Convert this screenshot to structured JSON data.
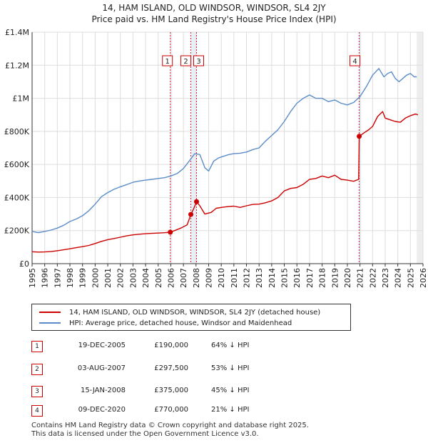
{
  "title": "14, HAM ISLAND, OLD WINDSOR, WINDSOR, SL4 2JY",
  "subtitle": "Price paid vs. HM Land Registry's House Price Index (HPI)",
  "colors": {
    "property": "#cc0000",
    "hpi": "#5b8cc8",
    "shade": "#dfe7f5",
    "grid": "#dddddd"
  },
  "chart_data": {
    "type": "line",
    "title": "Price paid vs. HM Land Registry's House Price Index (HPI)",
    "xlim": [
      1995,
      2026
    ],
    "ylim": [
      0,
      1400000
    ],
    "x_ticks": [
      "1995",
      "1996",
      "1997",
      "1998",
      "1999",
      "2000",
      "2001",
      "2002",
      "2003",
      "2004",
      "2005",
      "2006",
      "2007",
      "2008",
      "2009",
      "2010",
      "2011",
      "2012",
      "2013",
      "2014",
      "2015",
      "2016",
      "2017",
      "2018",
      "2019",
      "2020",
      "2021",
      "2022",
      "2023",
      "2024",
      "2025",
      "2026"
    ],
    "y_ticks": [
      {
        "value": 0,
        "label": "£0"
      },
      {
        "value": 200000,
        "label": "£200K"
      },
      {
        "value": 400000,
        "label": "£400K"
      },
      {
        "value": 600000,
        "label": "£600K"
      },
      {
        "value": 800000,
        "label": "£800K"
      },
      {
        "value": 1000000,
        "label": "£1M"
      },
      {
        "value": 1200000,
        "label": "£1.2M"
      },
      {
        "value": 1400000,
        "label": "£1.4M"
      }
    ],
    "series": [
      {
        "name": "14, HAM ISLAND, OLD WINDSOR, WINDSOR, SL4 2JY (detached house)",
        "color": "#cc0000",
        "x": [
          1995.0,
          1995.5,
          1996.0,
          1996.5,
          1997.0,
          1997.5,
          1998.0,
          1998.5,
          1999.0,
          1999.5,
          2000.0,
          2000.5,
          2001.0,
          2001.5,
          2002.0,
          2002.5,
          2003.0,
          2003.5,
          2004.0,
          2004.5,
          2005.0,
          2005.5,
          2005.96,
          2006.3,
          2006.8,
          2007.3,
          2007.59,
          2007.8,
          2008.04,
          2008.3,
          2008.7,
          2009.2,
          2009.6,
          2010.0,
          2010.5,
          2011.0,
          2011.5,
          2012.0,
          2012.5,
          2013.0,
          2013.5,
          2014.0,
          2014.5,
          2015.0,
          2015.5,
          2016.0,
          2016.5,
          2017.0,
          2017.5,
          2018.0,
          2018.5,
          2019.0,
          2019.5,
          2020.0,
          2020.5,
          2020.9,
          2020.94,
          2021.3,
          2021.7,
          2022.0,
          2022.4,
          2022.8,
          2023.0,
          2023.4,
          2023.8,
          2024.2,
          2024.6,
          2025.0,
          2025.4,
          2025.6
        ],
        "values": [
          72000,
          70000,
          71000,
          73000,
          78000,
          84000,
          90000,
          97000,
          103000,
          110000,
          122000,
          135000,
          145000,
          152000,
          160000,
          168000,
          174000,
          178000,
          181000,
          183000,
          185000,
          187000,
          190000,
          200000,
          215000,
          235000,
          297500,
          330000,
          375000,
          350000,
          300000,
          310000,
          335000,
          340000,
          345000,
          348000,
          340000,
          350000,
          358000,
          360000,
          368000,
          380000,
          400000,
          440000,
          455000,
          460000,
          480000,
          510000,
          515000,
          530000,
          520000,
          535000,
          510000,
          505000,
          498000,
          510000,
          770000,
          790000,
          810000,
          830000,
          890000,
          920000,
          880000,
          870000,
          860000,
          855000,
          880000,
          895000,
          905000,
          900000
        ]
      },
      {
        "name": "HPI: Average price, detached house, Windsor and Maidenhead",
        "color": "#5b8cc8",
        "x": [
          1995.0,
          1995.5,
          1996.0,
          1996.5,
          1997.0,
          1997.5,
          1998.0,
          1998.5,
          1999.0,
          1999.5,
          2000.0,
          2000.5,
          2001.0,
          2001.5,
          2002.0,
          2002.5,
          2003.0,
          2003.5,
          2004.0,
          2004.5,
          2005.0,
          2005.5,
          2006.0,
          2006.5,
          2007.0,
          2007.5,
          2007.9,
          2008.3,
          2008.7,
          2009.0,
          2009.4,
          2009.8,
          2010.2,
          2010.6,
          2011.0,
          2011.5,
          2012.0,
          2012.5,
          2013.0,
          2013.5,
          2014.0,
          2014.5,
          2015.0,
          2015.5,
          2016.0,
          2016.5,
          2017.0,
          2017.5,
          2018.0,
          2018.5,
          2019.0,
          2019.5,
          2020.0,
          2020.5,
          2021.0,
          2021.5,
          2022.0,
          2022.5,
          2022.9,
          2023.2,
          2023.5,
          2023.8,
          2024.1,
          2024.4,
          2024.7,
          2025.0,
          2025.3,
          2025.5
        ],
        "values": [
          195000,
          188000,
          195000,
          203000,
          215000,
          232000,
          255000,
          270000,
          290000,
          320000,
          360000,
          405000,
          430000,
          450000,
          465000,
          478000,
          492000,
          500000,
          505000,
          510000,
          515000,
          520000,
          530000,
          545000,
          575000,
          625000,
          665000,
          660000,
          580000,
          560000,
          620000,
          640000,
          650000,
          660000,
          665000,
          668000,
          675000,
          690000,
          700000,
          740000,
          775000,
          810000,
          860000,
          920000,
          970000,
          1000000,
          1020000,
          1000000,
          1000000,
          980000,
          990000,
          970000,
          960000,
          975000,
          1010000,
          1070000,
          1140000,
          1180000,
          1130000,
          1150000,
          1160000,
          1120000,
          1100000,
          1120000,
          1140000,
          1150000,
          1130000,
          1130000
        ]
      }
    ],
    "transactions": [
      {
        "num": "1",
        "date": "19-DEC-2005",
        "x": 2005.96,
        "price": 190000,
        "price_label": "£190,000",
        "hpi": "64% ↓ HPI"
      },
      {
        "num": "2",
        "date": "03-AUG-2007",
        "x": 2007.59,
        "price": 297500,
        "price_label": "£297,500",
        "hpi": "53% ↓ HPI"
      },
      {
        "num": "3",
        "date": "15-JAN-2008",
        "x": 2008.04,
        "price": 375000,
        "price_label": "£375,000",
        "hpi": "45% ↓ HPI"
      },
      {
        "num": "4",
        "date": "09-DEC-2020",
        "x": 2020.94,
        "price": 770000,
        "price_label": "£770,000",
        "hpi": "21% ↓ HPI"
      }
    ]
  },
  "legend": {
    "property_label": "14, HAM ISLAND, OLD WINDSOR, WINDSOR, SL4 2JY (detached house)",
    "hpi_label": "HPI: Average price, detached house, Windsor and Maidenhead"
  },
  "footer": {
    "line1": "Contains HM Land Registry data © Crown copyright and database right 2025.",
    "line2": "This data is licensed under the Open Government Licence v3.0."
  }
}
